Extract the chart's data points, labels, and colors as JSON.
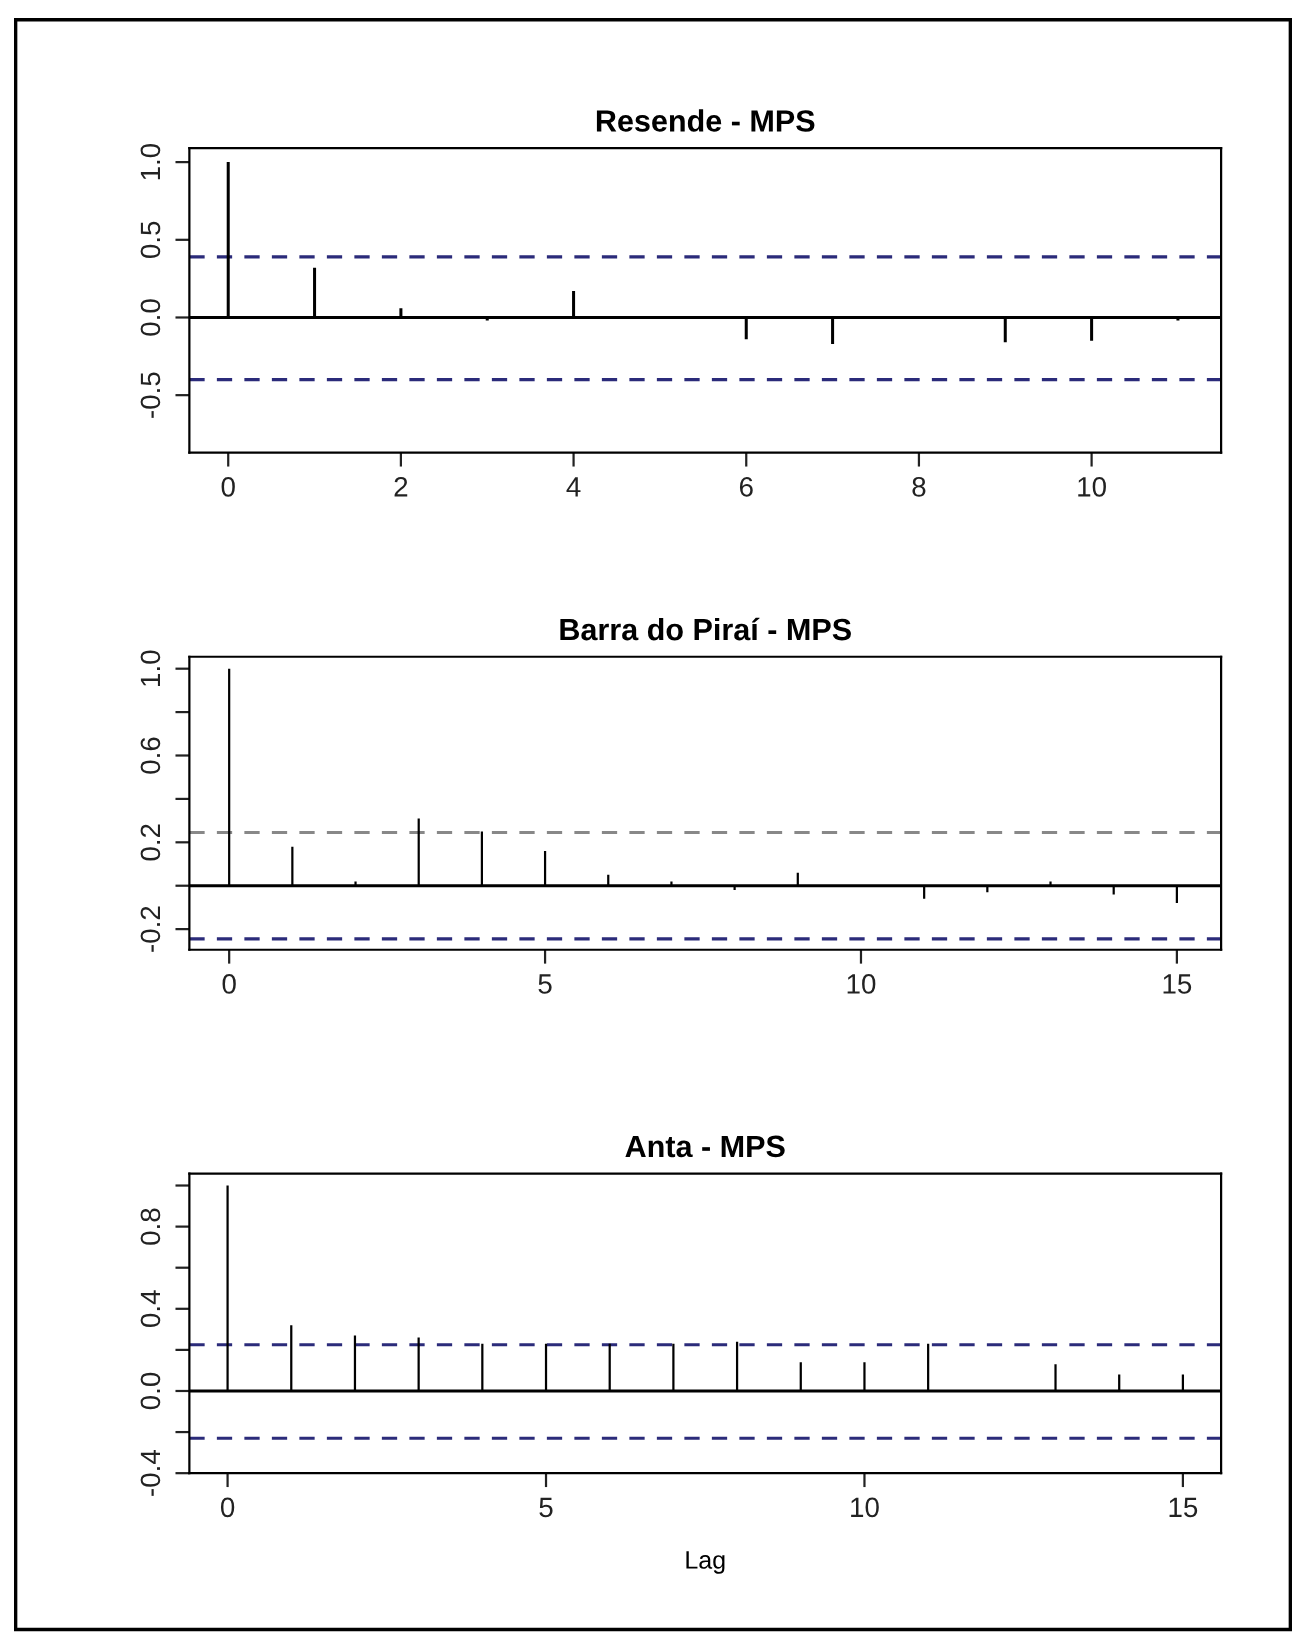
{
  "chart_data": [
    {
      "type": "bar",
      "title": "Resende - MPS",
      "x": [
        0,
        1,
        2,
        3,
        4,
        5,
        6,
        7,
        8,
        9,
        10,
        11
      ],
      "values": [
        1.0,
        0.32,
        0.06,
        -0.02,
        0.17,
        0.0,
        -0.14,
        -0.17,
        -0.01,
        -0.16,
        -0.15,
        -0.02
      ],
      "color": "#000000",
      "xlim": [
        -0.45,
        11.5
      ],
      "xticks": [
        0,
        2,
        4,
        6,
        8,
        10
      ],
      "ylim": [
        -0.87,
        1.09
      ],
      "yticks": [
        {
          "value": -0.5,
          "label": "-0.5"
        },
        {
          "value": 0,
          "label": "0.0"
        },
        {
          "value": 0.5,
          "label": "0.5"
        },
        {
          "value": 1,
          "label": "1.0"
        }
      ],
      "ref_lines": [
        {
          "axis": "y",
          "value": 0,
          "color": "#000000",
          "line_style": "solid"
        },
        {
          "axis": "y",
          "value": 0.39,
          "color": "#2b2b7a",
          "line_style": "dashed"
        },
        {
          "axis": "y",
          "value": -0.4,
          "color": "#2b2b7a",
          "line_style": "dashed"
        }
      ],
      "grid": false,
      "legend": false
    },
    {
      "type": "bar",
      "title": "Barra do Piraí - MPS",
      "x": [
        0,
        1,
        2,
        3,
        4,
        5,
        6,
        7,
        8,
        9,
        10,
        11,
        12,
        13,
        14,
        15
      ],
      "values": [
        1.0,
        0.18,
        0.02,
        0.31,
        0.25,
        0.16,
        0.05,
        0.02,
        -0.02,
        0.06,
        0.0,
        -0.06,
        -0.03,
        0.02,
        -0.04,
        -0.08
      ],
      "color": "#000000",
      "xlim": [
        -0.63,
        15.7
      ],
      "xticks": [
        0,
        5,
        10,
        15
      ],
      "ylim": [
        -0.295,
        1.055
      ],
      "yticks": [
        {
          "value": -0.2,
          "label": "-0.2"
        },
        {
          "value": 0,
          "label": null
        },
        {
          "value": 0.2,
          "label": "0.2"
        },
        {
          "value": 0.4,
          "label": null
        },
        {
          "value": 0.6,
          "label": "0.6"
        },
        {
          "value": 0.8,
          "label": null
        },
        {
          "value": 1,
          "label": "1.0"
        }
      ],
      "ref_lines": [
        {
          "axis": "y",
          "value": 0,
          "color": "#000000",
          "line_style": "solid"
        },
        {
          "axis": "y",
          "value": 0.245,
          "color": "#888888",
          "line_style": "dashed"
        },
        {
          "axis": "y",
          "value": -0.245,
          "color": "#2b2b7a",
          "line_style": "dashed"
        }
      ],
      "grid": false,
      "legend": false
    },
    {
      "type": "bar",
      "title": "Anta - MPS",
      "xlabel": "Lag",
      "x": [
        0,
        1,
        2,
        3,
        4,
        5,
        6,
        7,
        8,
        9,
        10,
        11,
        12,
        13,
        14,
        15
      ],
      "values": [
        1.0,
        0.32,
        0.27,
        0.26,
        0.23,
        0.23,
        0.23,
        0.23,
        0.24,
        0.14,
        0.14,
        0.23,
        0.0,
        0.13,
        0.08,
        0.08
      ],
      "color": "#000000",
      "xlim": [
        -0.6,
        15.6
      ],
      "xticks": [
        0,
        5,
        10,
        15
      ],
      "ylim": [
        -0.4,
        1.058
      ],
      "yticks": [
        {
          "value": -0.4,
          "label": "-0.4"
        },
        {
          "value": -0.2,
          "label": null
        },
        {
          "value": 0,
          "label": "0.0"
        },
        {
          "value": 0.2,
          "label": null
        },
        {
          "value": 0.4,
          "label": "0.4"
        },
        {
          "value": 0.6,
          "label": null
        },
        {
          "value": 0.8,
          "label": "0.8"
        },
        {
          "value": 1,
          "label": null
        }
      ],
      "ref_lines": [
        {
          "axis": "y",
          "value": 0,
          "color": "#000000",
          "line_style": "solid"
        },
        {
          "axis": "y",
          "value": 0.225,
          "color": "#2b2b7a",
          "line_style": "dashed"
        },
        {
          "axis": "y",
          "value": -0.23,
          "color": "#2b2b7a",
          "line_style": "dashed"
        }
      ],
      "grid": false,
      "legend": false
    }
  ]
}
